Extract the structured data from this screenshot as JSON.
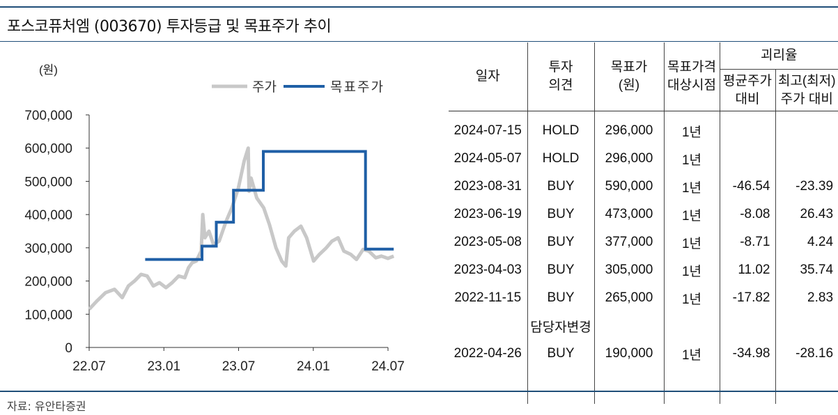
{
  "title": "포스코퓨처엠 (003670) 투자등급 및 목표주가 추이",
  "source": "자료: 유안타증권",
  "colors": {
    "rule": "#1f4e79",
    "price_line": "#c8c8c8",
    "target_line": "#1f5fa6"
  },
  "chart_data": {
    "type": "line",
    "yunit": "(원)",
    "ylim": [
      0,
      700000
    ],
    "yticks": [
      "700,000",
      "600,000",
      "500,000",
      "400,000",
      "300,000",
      "200,000",
      "100,000",
      "0"
    ],
    "xticks": [
      "22.07",
      "23.01",
      "23.07",
      "24.01",
      "24.07"
    ],
    "xrange": [
      "2022-07",
      "2024-07"
    ],
    "legend_position": "top-right",
    "series": [
      {
        "name": "주가",
        "x": [
          "2022-07-01",
          "2022-07-20",
          "2022-08-10",
          "2022-09-01",
          "2022-09-20",
          "2022-10-05",
          "2022-10-20",
          "2022-11-05",
          "2022-11-20",
          "2022-12-05",
          "2022-12-20",
          "2023-01-05",
          "2023-01-20",
          "2023-02-05",
          "2023-02-20",
          "2023-03-01",
          "2023-03-10",
          "2023-03-20",
          "2023-04-01",
          "2023-04-05",
          "2023-04-10",
          "2023-04-20",
          "2023-05-01",
          "2023-05-15",
          "2023-06-01",
          "2023-06-15",
          "2023-07-01",
          "2023-07-15",
          "2023-07-25",
          "2023-07-27",
          "2023-08-01",
          "2023-08-15",
          "2023-09-01",
          "2023-09-15",
          "2023-10-01",
          "2023-10-15",
          "2023-10-25",
          "2023-11-01",
          "2023-11-15",
          "2023-12-01",
          "2023-12-15",
          "2024-01-01",
          "2024-01-15",
          "2024-02-01",
          "2024-02-15",
          "2024-03-01",
          "2024-03-15",
          "2024-04-01",
          "2024-04-15",
          "2024-05-01",
          "2024-05-15",
          "2024-06-01",
          "2024-06-15",
          "2024-07-01",
          "2024-07-15"
        ],
        "values": [
          115000,
          140000,
          165000,
          175000,
          150000,
          185000,
          200000,
          220000,
          215000,
          185000,
          195000,
          180000,
          195000,
          215000,
          210000,
          240000,
          255000,
          260000,
          290000,
          400000,
          330000,
          350000,
          310000,
          320000,
          380000,
          420000,
          480000,
          560000,
          600000,
          470000,
          510000,
          450000,
          420000,
          370000,
          300000,
          260000,
          245000,
          330000,
          350000,
          365000,
          330000,
          260000,
          280000,
          300000,
          320000,
          330000,
          290000,
          280000,
          265000,
          295000,
          290000,
          270000,
          275000,
          268000,
          275000
        ]
      },
      {
        "name": "목표주가",
        "step": [
          {
            "from": "2022-11-15",
            "to": "2023-04-03",
            "value": 265000
          },
          {
            "from": "2023-04-03",
            "to": "2023-05-08",
            "value": 305000
          },
          {
            "from": "2023-05-08",
            "to": "2023-06-19",
            "value": 377000
          },
          {
            "from": "2023-06-19",
            "to": "2023-08-31",
            "value": 473000
          },
          {
            "from": "2023-08-31",
            "to": "2024-05-07",
            "value": 590000
          },
          {
            "from": "2024-05-07",
            "to": "2024-07-15",
            "value": 296000
          }
        ]
      }
    ]
  },
  "table": {
    "headers": {
      "date": "일자",
      "opinion_1": "투자",
      "opinion_2": "의견",
      "target_1": "목표가",
      "target_2": "(원)",
      "basis_1": "목표가격",
      "basis_2": "대상시점",
      "deviation": "괴리율",
      "avg_1": "평균주가",
      "avg_2": "대비",
      "hl_1": "최고(최저)",
      "hl_2": "주가 대비"
    },
    "rows": [
      {
        "date": "2024-07-15",
        "opinion": "HOLD",
        "target": "296,000",
        "period": "1년",
        "avg": "",
        "hl": ""
      },
      {
        "date": "2024-05-07",
        "opinion": "HOLD",
        "target": "296,000",
        "period": "1년",
        "avg": "",
        "hl": ""
      },
      {
        "date": "2023-08-31",
        "opinion": "BUY",
        "target": "590,000",
        "period": "1년",
        "avg": "-46.54",
        "hl": "-23.39"
      },
      {
        "date": "2023-06-19",
        "opinion": "BUY",
        "target": "473,000",
        "period": "1년",
        "avg": "-8.08",
        "hl": "26.43"
      },
      {
        "date": "2023-05-08",
        "opinion": "BUY",
        "target": "377,000",
        "period": "1년",
        "avg": "-8.71",
        "hl": "4.24"
      },
      {
        "date": "2023-04-03",
        "opinion": "BUY",
        "target": "305,000",
        "period": "1년",
        "avg": "11.02",
        "hl": "35.74"
      },
      {
        "date": "2022-11-15",
        "opinion": "BUY",
        "target": "265,000",
        "period": "1년",
        "avg": "-17.82",
        "hl": "2.83"
      }
    ],
    "note": "담당자변경",
    "final_row": {
      "date": "2022-04-26",
      "opinion": "BUY",
      "target": "190,000",
      "period": "1년",
      "avg": "-34.98",
      "hl": "-28.16"
    }
  }
}
